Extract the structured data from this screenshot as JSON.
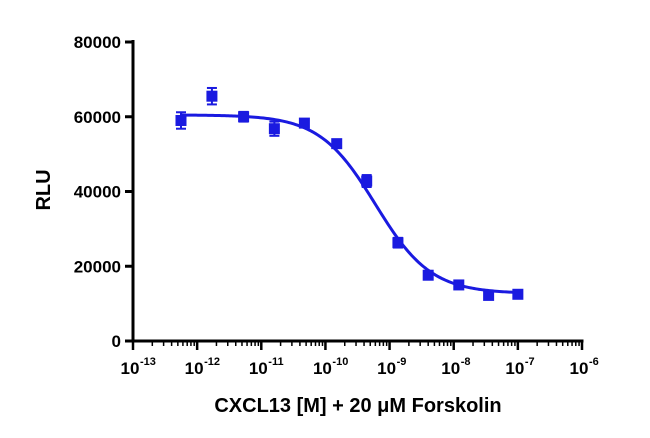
{
  "chart_data": {
    "type": "scatter",
    "xlabel": "CXCL13 [M] + 20 μM Forskolin",
    "ylabel": "RLU",
    "x_scale": "log",
    "xlim": [
      1e-13,
      1e-06
    ],
    "ylim": [
      0,
      80000
    ],
    "x_tick_labels": [
      {
        "base": "10",
        "exp": "-13"
      },
      {
        "base": "10",
        "exp": "-12"
      },
      {
        "base": "10",
        "exp": "-11"
      },
      {
        "base": "10",
        "exp": "-10"
      },
      {
        "base": "10",
        "exp": "-9"
      },
      {
        "base": "10",
        "exp": "-8"
      },
      {
        "base": "10",
        "exp": "-7"
      },
      {
        "base": "10",
        "exp": "-6"
      }
    ],
    "y_ticks": [
      0,
      20000,
      40000,
      60000,
      80000
    ],
    "y_tick_labels": [
      "0",
      "20000",
      "40000",
      "60000",
      "80000"
    ],
    "marker_color": "#1a1ae0",
    "fit_color": "#1a1ae0",
    "series": [
      {
        "points": [
          {
            "x": 5.6e-13,
            "y": 59000,
            "err": 2200
          },
          {
            "x": 1.7e-12,
            "y": 65500,
            "err": 2200
          },
          {
            "x": 5.3e-12,
            "y": 60000,
            "err": 1300
          },
          {
            "x": 1.6e-11,
            "y": 56800,
            "err": 1900
          },
          {
            "x": 4.7e-11,
            "y": 58300,
            "err": 600
          },
          {
            "x": 1.5e-10,
            "y": 52800,
            "err": 700
          },
          {
            "x": 4.4e-10,
            "y": 42800,
            "err": 1600
          },
          {
            "x": 1.35e-09,
            "y": 26300,
            "err": 1300
          },
          {
            "x": 4e-09,
            "y": 17600,
            "err": 500
          },
          {
            "x": 1.2e-08,
            "y": 15000,
            "err": 500
          },
          {
            "x": 3.5e-08,
            "y": 12200,
            "err": 500
          },
          {
            "x": 1e-07,
            "y": 12500,
            "err": 400
          }
        ],
        "fit": {
          "model": "4PL",
          "top": 60500,
          "bottom": 12700,
          "ic50": 6e-10,
          "hill": 1.0,
          "x_range": [
            5.6e-13,
            1e-07
          ]
        }
      }
    ]
  }
}
